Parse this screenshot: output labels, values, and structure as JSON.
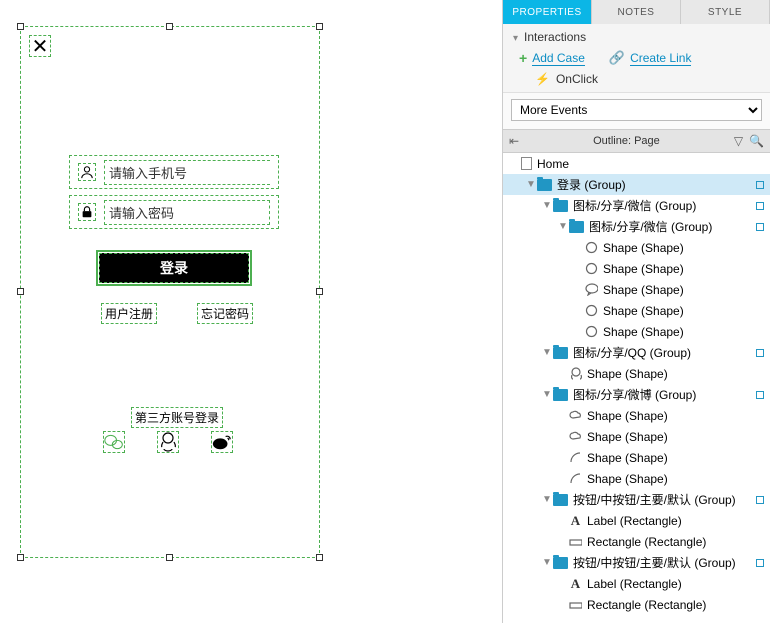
{
  "canvas": {
    "border_color": "#4caf50",
    "close_glyph": "✕",
    "phone_placeholder": "请输入手机号",
    "password_placeholder": "请输入密码",
    "login_label": "登录",
    "register_label": "用户注册",
    "forgot_label": "忘记密码",
    "third_party_title": "第三方账号登录",
    "login_btn_bg": "#000000",
    "login_btn_fg": "#ffffff"
  },
  "panel": {
    "tabs": {
      "properties": "PROPERTIES",
      "notes": "NOTES",
      "style": "STYLE"
    },
    "interactions_header": "Interactions",
    "add_case": "Add Case",
    "create_link": "Create Link",
    "onclick": "OnClick",
    "more_events": "More Events"
  },
  "outline": {
    "title": "Outline: Page",
    "root": "Home",
    "rows": [
      {
        "depth": 0,
        "kind": "page",
        "label": "Home",
        "expand": "",
        "flag": false
      },
      {
        "depth": 1,
        "kind": "folder",
        "label": "登录 (Group)",
        "expand": "▼",
        "flag": true,
        "selected": true
      },
      {
        "depth": 2,
        "kind": "folder",
        "label": "图标/分享/微信 (Group)",
        "expand": "▼",
        "flag": true
      },
      {
        "depth": 3,
        "kind": "folder",
        "label": "图标/分享/微信 (Group)",
        "expand": "▼",
        "flag": true
      },
      {
        "depth": 4,
        "kind": "circle",
        "label": "Shape (Shape)",
        "expand": "",
        "flag": false
      },
      {
        "depth": 4,
        "kind": "circle",
        "label": "Shape (Shape)",
        "expand": "",
        "flag": false
      },
      {
        "depth": 4,
        "kind": "speech",
        "label": "Shape (Shape)",
        "expand": "",
        "flag": false
      },
      {
        "depth": 4,
        "kind": "circle",
        "label": "Shape (Shape)",
        "expand": "",
        "flag": false
      },
      {
        "depth": 4,
        "kind": "circle",
        "label": "Shape (Shape)",
        "expand": "",
        "flag": false
      },
      {
        "depth": 2,
        "kind": "folder",
        "label": "图标/分享/QQ (Group)",
        "expand": "▼",
        "flag": true
      },
      {
        "depth": 3,
        "kind": "penguin",
        "label": "Shape (Shape)",
        "expand": "",
        "flag": false
      },
      {
        "depth": 2,
        "kind": "folder",
        "label": "图标/分享/微博 (Group)",
        "expand": "▼",
        "flag": true
      },
      {
        "depth": 3,
        "kind": "cloud",
        "label": "Shape (Shape)",
        "expand": "",
        "flag": false
      },
      {
        "depth": 3,
        "kind": "cloud",
        "label": "Shape (Shape)",
        "expand": "",
        "flag": false
      },
      {
        "depth": 3,
        "kind": "curve",
        "label": "Shape (Shape)",
        "expand": "",
        "flag": false
      },
      {
        "depth": 3,
        "kind": "curve",
        "label": "Shape (Shape)",
        "expand": "",
        "flag": false
      },
      {
        "depth": 2,
        "kind": "folder",
        "label": "按钮/中按钮/主要/默认 (Group)",
        "expand": "▼",
        "flag": true
      },
      {
        "depth": 3,
        "kind": "text",
        "label": "Label (Rectangle)",
        "expand": "",
        "flag": false
      },
      {
        "depth": 3,
        "kind": "rect",
        "label": "Rectangle  (Rectangle)",
        "expand": "",
        "flag": false
      },
      {
        "depth": 2,
        "kind": "folder",
        "label": "按钮/中按钮/主要/默认 (Group)",
        "expand": "▼",
        "flag": true
      },
      {
        "depth": 3,
        "kind": "text",
        "label": "Label (Rectangle)",
        "expand": "",
        "flag": false
      },
      {
        "depth": 3,
        "kind": "rect",
        "label": "Rectangle  (Rectangle)",
        "expand": "",
        "flag": false
      }
    ]
  },
  "colors": {
    "accent_blue": "#0bb6e6",
    "link_blue": "#0b8dc4",
    "green": "#4caf50",
    "orange": "#f5a623"
  }
}
